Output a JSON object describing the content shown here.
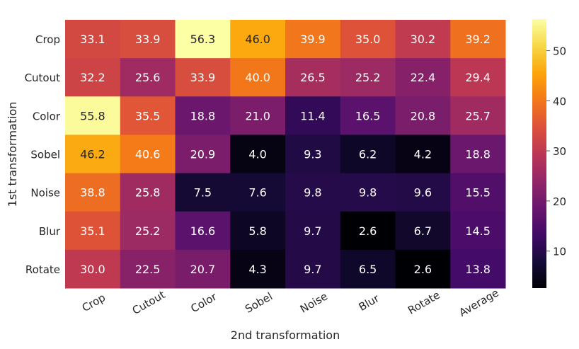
{
  "chart_data": {
    "type": "heatmap",
    "xlabel": "2nd transformation",
    "ylabel": "1st transformation",
    "x_categories": [
      "Crop",
      "Cutout",
      "Color",
      "Sobel",
      "Noise",
      "Blur",
      "Rotate",
      "Average"
    ],
    "y_categories": [
      "Crop",
      "Cutout",
      "Color",
      "Sobel",
      "Noise",
      "Blur",
      "Rotate"
    ],
    "values": [
      [
        33.1,
        33.9,
        56.3,
        46.0,
        39.9,
        35.0,
        30.2,
        39.2
      ],
      [
        32.2,
        25.6,
        33.9,
        40.0,
        26.5,
        25.2,
        22.4,
        29.4
      ],
      [
        55.8,
        35.5,
        18.8,
        21.0,
        11.4,
        16.5,
        20.8,
        25.7
      ],
      [
        46.2,
        40.6,
        20.9,
        4.0,
        9.3,
        6.2,
        4.2,
        18.8
      ],
      [
        38.8,
        25.8,
        7.5,
        7.6,
        9.8,
        9.8,
        9.6,
        15.5
      ],
      [
        35.1,
        25.2,
        16.6,
        5.8,
        9.7,
        2.6,
        6.7,
        14.5
      ],
      [
        30.0,
        22.5,
        20.7,
        4.3,
        9.7,
        6.5,
        2.6,
        13.8
      ]
    ],
    "colormap": "inferno",
    "color_range": [
      2.6,
      56.3
    ],
    "colorbar_ticks": [
      10,
      20,
      30,
      40,
      50
    ],
    "annotations": true,
    "grid": false
  }
}
